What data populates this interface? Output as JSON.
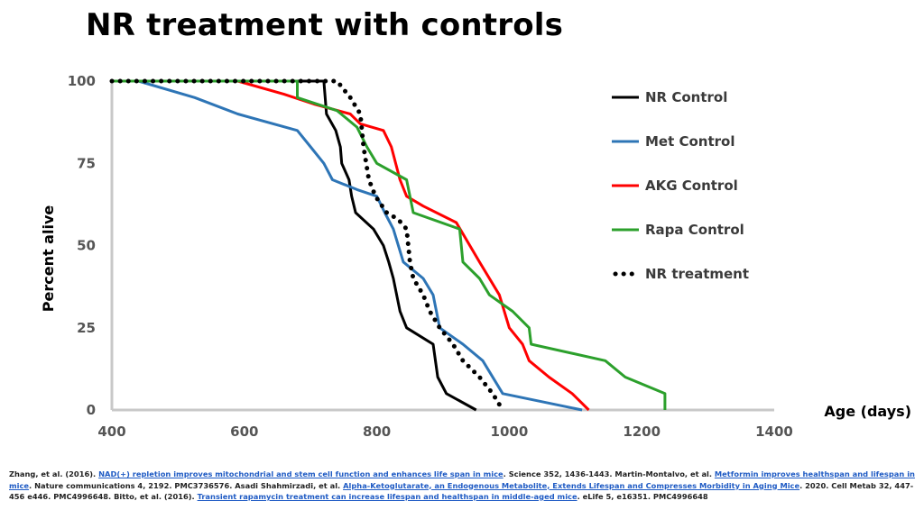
{
  "slide": {
    "title": "NR treatment with controls"
  },
  "chart_data": {
    "type": "line",
    "title": "",
    "xlabel": "Age (days)",
    "ylabel": "Percent alive",
    "xlim": [
      400,
      1400
    ],
    "ylim": [
      0,
      100
    ],
    "xticks": [
      "400",
      "600",
      "800",
      "1000",
      "1200",
      "1400"
    ],
    "yticks": [
      "0",
      "25",
      "50",
      "75",
      "100"
    ],
    "legend_position": "right",
    "grid": false,
    "series": [
      {
        "name": "NR Control",
        "color": "#000000",
        "style": "solid",
        "points": [
          [
            400,
            100
          ],
          [
            720,
            100
          ],
          [
            724,
            90
          ],
          [
            738,
            85
          ],
          [
            745,
            80
          ],
          [
            747,
            75
          ],
          [
            758,
            70
          ],
          [
            762,
            65
          ],
          [
            768,
            60
          ],
          [
            795,
            55
          ],
          [
            810,
            50
          ],
          [
            818,
            45
          ],
          [
            825,
            40
          ],
          [
            835,
            30
          ],
          [
            845,
            25
          ],
          [
            885,
            20
          ],
          [
            892,
            10
          ],
          [
            905,
            5
          ],
          [
            950,
            0
          ]
        ]
      },
      {
        "name": "Met Control",
        "color": "#2e75b6",
        "style": "solid",
        "points": [
          [
            400,
            100
          ],
          [
            440,
            100
          ],
          [
            525,
            95
          ],
          [
            590,
            90
          ],
          [
            680,
            85
          ],
          [
            700,
            80
          ],
          [
            720,
            75
          ],
          [
            733,
            70
          ],
          [
            770,
            67
          ],
          [
            800,
            65
          ],
          [
            812,
            60
          ],
          [
            825,
            55
          ],
          [
            840,
            45
          ],
          [
            870,
            40
          ],
          [
            885,
            35
          ],
          [
            895,
            25
          ],
          [
            930,
            20
          ],
          [
            960,
            15
          ],
          [
            990,
            5
          ],
          [
            1110,
            0
          ]
        ]
      },
      {
        "name": "AKG Control",
        "color": "#ff0000",
        "style": "solid",
        "points": [
          [
            400,
            100
          ],
          [
            590,
            100
          ],
          [
            660,
            96
          ],
          [
            705,
            93
          ],
          [
            760,
            90
          ],
          [
            775,
            87
          ],
          [
            810,
            85
          ],
          [
            822,
            80
          ],
          [
            835,
            70
          ],
          [
            845,
            65
          ],
          [
            870,
            62
          ],
          [
            920,
            57
          ],
          [
            955,
            45
          ],
          [
            985,
            35
          ],
          [
            1000,
            25
          ],
          [
            1020,
            20
          ],
          [
            1030,
            15
          ],
          [
            1060,
            10
          ],
          [
            1095,
            5
          ],
          [
            1120,
            0
          ]
        ]
      },
      {
        "name": "Rapa Control",
        "color": "#2ca02c",
        "style": "solid",
        "points": [
          [
            400,
            100
          ],
          [
            680,
            100
          ],
          [
            680,
            95
          ],
          [
            740,
            91
          ],
          [
            770,
            86
          ],
          [
            785,
            80
          ],
          [
            800,
            75
          ],
          [
            845,
            70
          ],
          [
            855,
            60
          ],
          [
            925,
            55
          ],
          [
            930,
            45
          ],
          [
            955,
            40
          ],
          [
            970,
            35
          ],
          [
            1005,
            30
          ],
          [
            1030,
            25
          ],
          [
            1033,
            20
          ],
          [
            1145,
            15
          ],
          [
            1175,
            10
          ],
          [
            1235,
            5
          ],
          [
            1235,
            0
          ]
        ]
      },
      {
        "name": "NR treatment",
        "color": "#000000",
        "style": "dotted",
        "points": [
          [
            400,
            100
          ],
          [
            740,
            100
          ],
          [
            760,
            95
          ],
          [
            775,
            90
          ],
          [
            780,
            80
          ],
          [
            788,
            70
          ],
          [
            798,
            65
          ],
          [
            815,
            60
          ],
          [
            832,
            58
          ],
          [
            845,
            55
          ],
          [
            850,
            45
          ],
          [
            855,
            40
          ],
          [
            870,
            35
          ],
          [
            880,
            30
          ],
          [
            895,
            25
          ],
          [
            915,
            20
          ],
          [
            930,
            15
          ],
          [
            955,
            10
          ],
          [
            975,
            5
          ],
          [
            990,
            0
          ]
        ]
      }
    ]
  },
  "references": {
    "r1_pre": "Zhang, et al. (2016). ",
    "r1_link": "NAD(+) repletion improves mitochondrial and stem cell function and enhances life span in mice",
    "r1_post": ". Science 352, 1436-1443. Martin-Montalvo, et al. ",
    "r2_link": "Metformin improves healthspan and lifespan in mice",
    "r2_post": ". Nature communications 4, 2192. PMC3736576. Asadi Shahmirzadi, et al. ",
    "r3_link": "Alpha-Ketoglutarate, an Endogenous Metabolite, Extends Lifespan and Compresses Morbidity in Aging Mice",
    "r3_post": ". 2020. Cell Metab 32, 447-456 e446. PMC4996648. Bitto, et al. (2016). ",
    "r4_link": "Transient rapamycin treatment can increase lifespan and healthspan in middle-aged mice",
    "r4_post": ". eLife 5, e16351. PMC4996648"
  }
}
